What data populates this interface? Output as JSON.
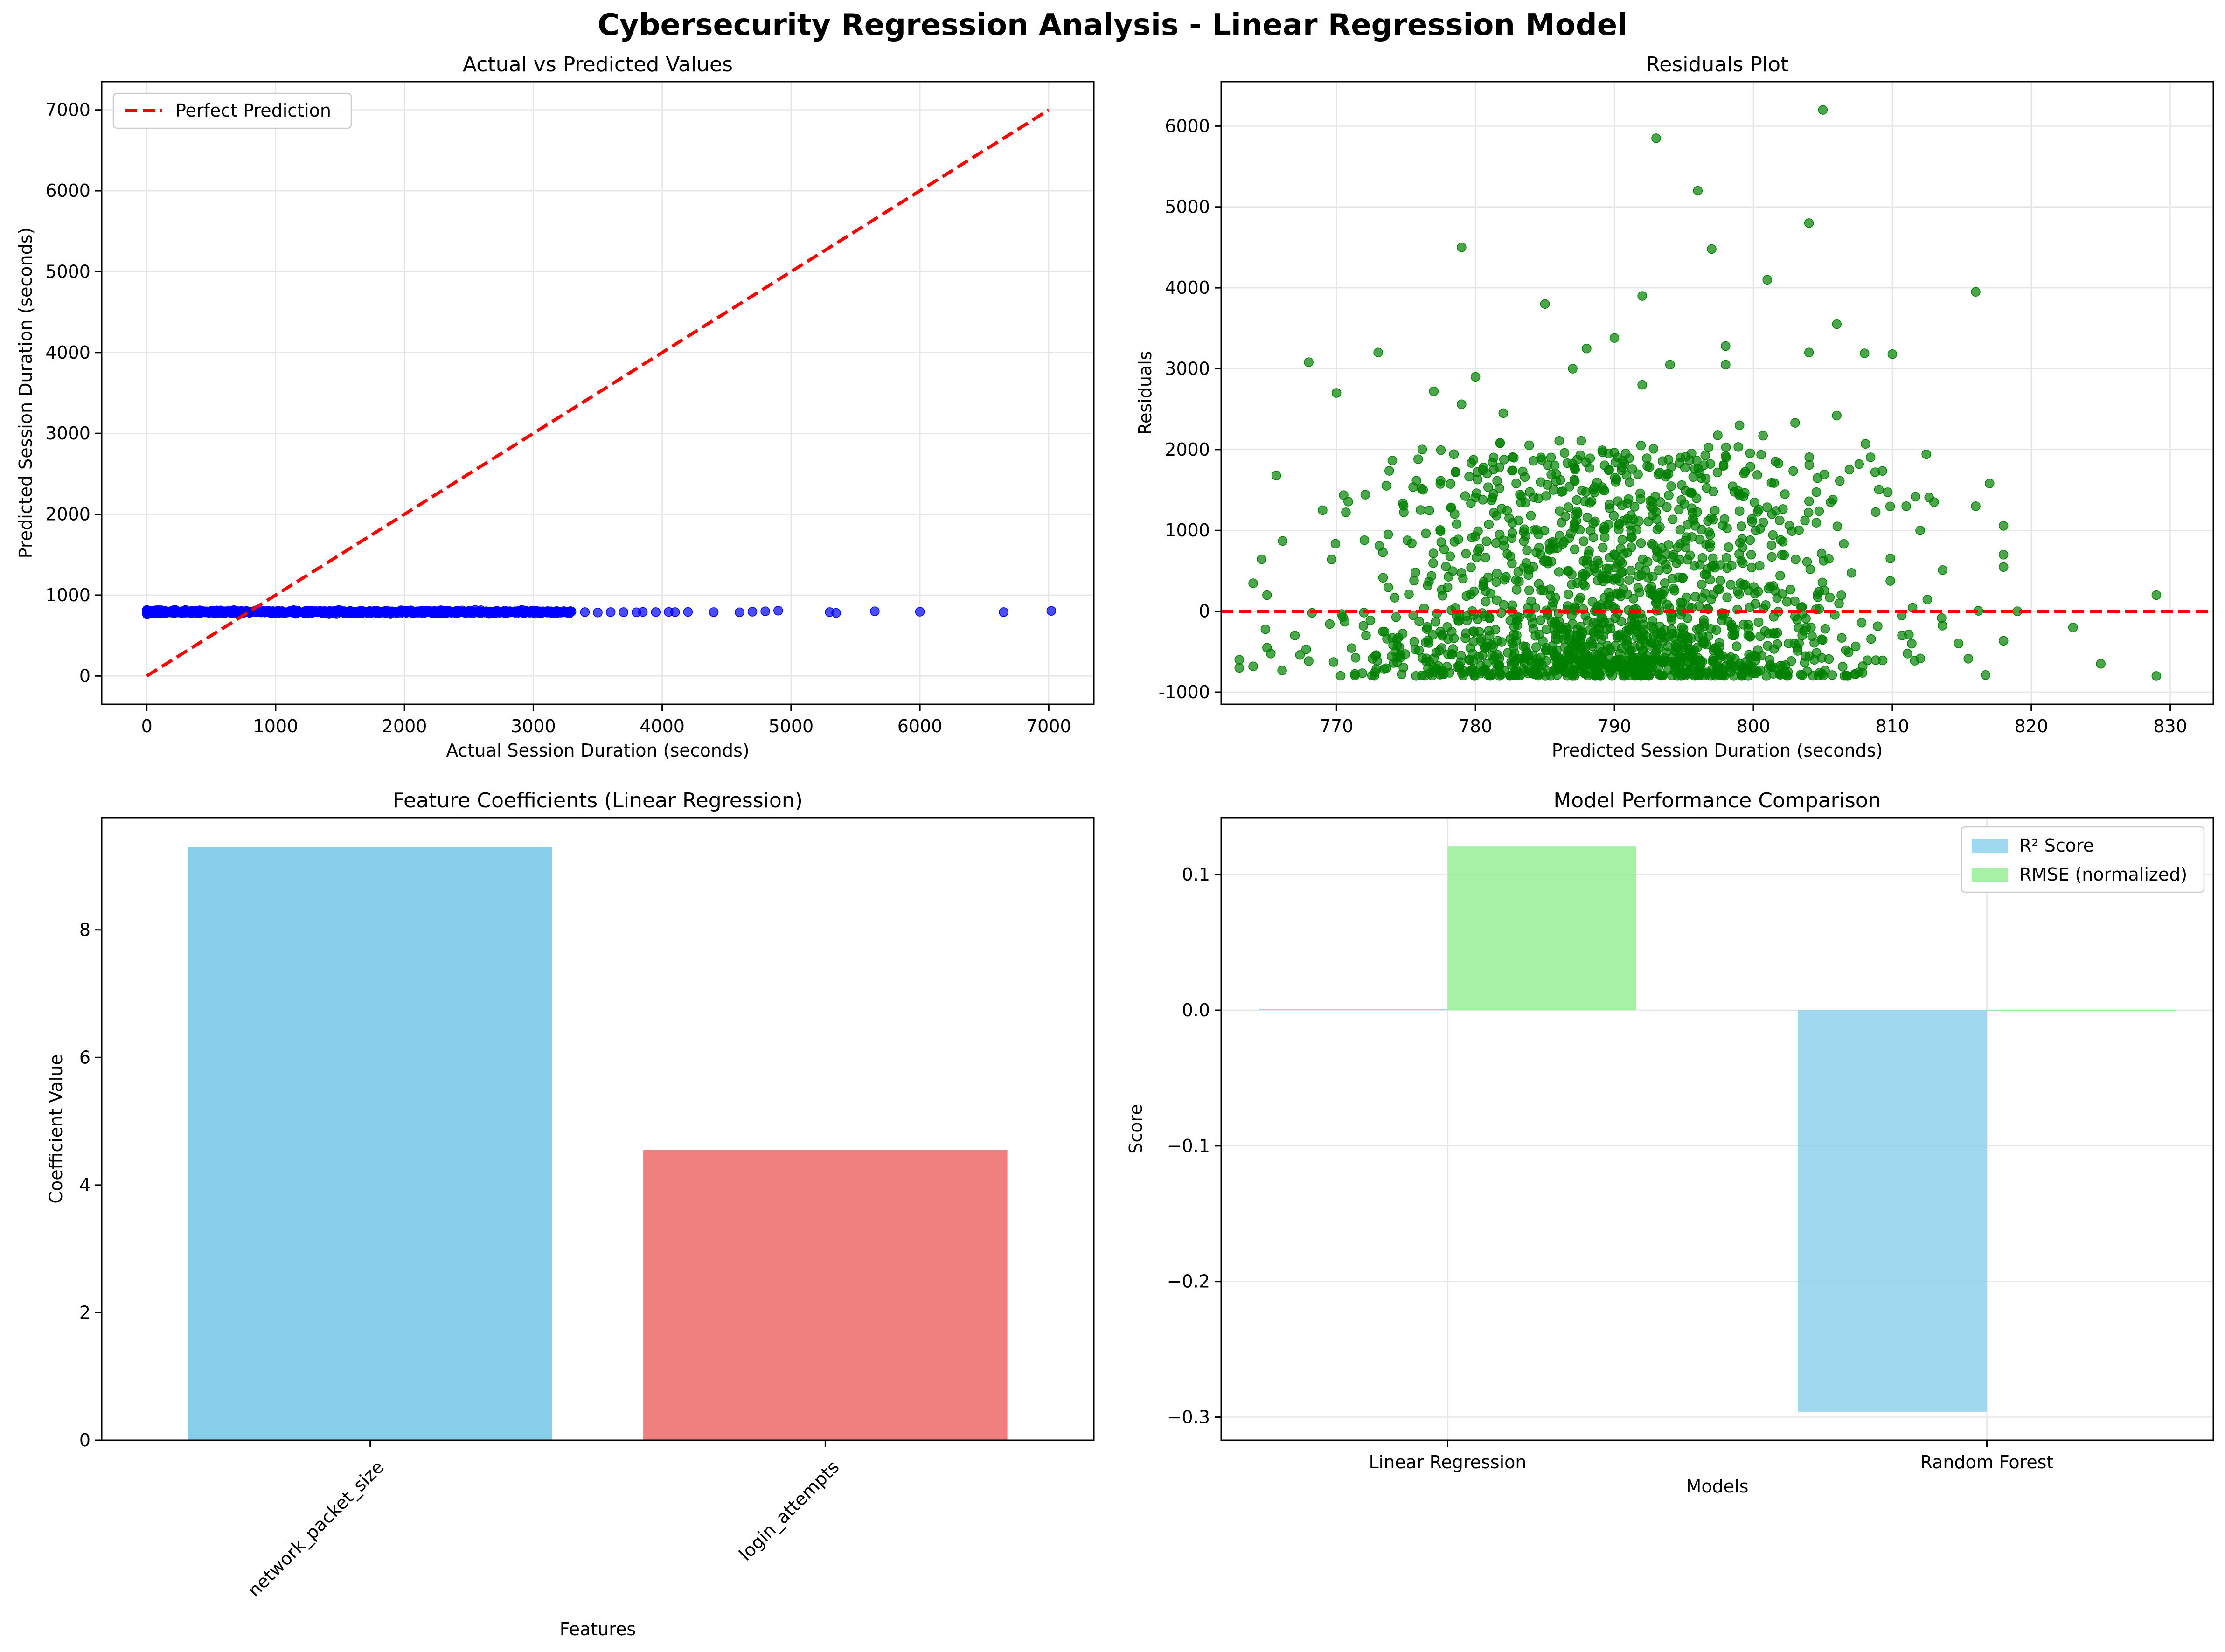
{
  "figure": {
    "title": "Cybersecurity Regression Analysis - Linear Regression Model"
  },
  "chart_data": [
    {
      "type": "scatter",
      "title": "Actual vs Predicted Values",
      "xlabel": "Actual Session Duration (seconds)",
      "ylabel": "Predicted Session Duration (seconds)",
      "xlim": [
        -350,
        7350
      ],
      "ylim": [
        -350,
        7350
      ],
      "xticks": [
        0,
        1000,
        2000,
        3000,
        4000,
        5000,
        6000,
        7000
      ],
      "yticks": [
        0,
        1000,
        2000,
        3000,
        4000,
        5000,
        6000,
        7000
      ],
      "grid": true,
      "legend": "upper-left",
      "series": [
        {
          "name": "",
          "kind": "points",
          "color": "#0000ff",
          "dense_x_range": [
            0,
            3300
          ],
          "dense_y_range": [
            775,
            815
          ],
          "points": [
            [
              3400,
              790
            ],
            [
              3500,
              785
            ],
            [
              3600,
              790
            ],
            [
              3700,
              790
            ],
            [
              3800,
              788
            ],
            [
              3850,
              792
            ],
            [
              3950,
              790
            ],
            [
              4050,
              792
            ],
            [
              4100,
              790
            ],
            [
              4200,
              792
            ],
            [
              4400,
              790
            ],
            [
              4600,
              788
            ],
            [
              4700,
              795
            ],
            [
              4800,
              800
            ],
            [
              4900,
              808
            ],
            [
              5300,
              790
            ],
            [
              5350,
              780
            ],
            [
              5650,
              800
            ],
            [
              6000,
              795
            ],
            [
              6650,
              790
            ],
            [
              7020,
              805
            ]
          ]
        },
        {
          "name": "Perfect Prediction",
          "kind": "line",
          "style": "dashed",
          "color": "#ff0000",
          "x": [
            0,
            7000
          ],
          "y": [
            0,
            7000
          ]
        }
      ]
    },
    {
      "type": "scatter",
      "title": "Residuals Plot",
      "xlabel": "Predicted Session Duration (seconds)",
      "ylabel": "Residuals",
      "xlim": [
        761.7,
        833.1
      ],
      "ylim": [
        -1150,
        6550
      ],
      "xticks": [
        770,
        780,
        790,
        800,
        810,
        820,
        830
      ],
      "yticks": [
        -1000,
        0,
        1000,
        2000,
        3000,
        4000,
        5000,
        6000
      ],
      "grid": true,
      "reference_line": {
        "y": 0,
        "style": "dashed",
        "color": "#ff0000"
      },
      "series": [
        {
          "name": "",
          "kind": "points",
          "color": "#008000",
          "cloud_center": 790,
          "cloud_spread": 9,
          "cloud_y_range": [
            -800,
            1200
          ],
          "points": [
            [
              805,
              6200
            ],
            [
              793,
              5850
            ],
            [
              796,
              5200
            ],
            [
              804,
              4800
            ],
            [
              779,
              4500
            ],
            [
              797,
              4480
            ],
            [
              801,
              4100
            ],
            [
              816,
              3950
            ],
            [
              792,
              3900
            ],
            [
              785,
              3800
            ],
            [
              806,
              3550
            ],
            [
              790,
              3380
            ],
            [
              798,
              3280
            ],
            [
              788,
              3250
            ],
            [
              804,
              3200
            ],
            [
              773,
              3200
            ],
            [
              810,
              3180
            ],
            [
              808,
              3190
            ],
            [
              768,
              3080
            ],
            [
              794,
              3050
            ],
            [
              798,
              3050
            ],
            [
              787,
              3000
            ],
            [
              780,
              2900
            ],
            [
              792,
              2800
            ],
            [
              777,
              2720
            ],
            [
              770,
              2700
            ],
            [
              806,
              2420
            ],
            [
              799,
              2300
            ],
            [
              803,
              2330
            ],
            [
              779,
              2560
            ],
            [
              782,
              2450
            ],
            [
              765,
              200
            ],
            [
              769,
              1250
            ],
            [
              763,
              -600
            ],
            [
              763,
              -700
            ],
            [
              765,
              -450
            ],
            [
              767,
              -300
            ],
            [
              818,
              700
            ],
            [
              819,
              0
            ],
            [
              823,
              -200
            ],
            [
              825,
              -650
            ],
            [
              829,
              200
            ],
            [
              829,
              -800
            ],
            [
              817,
              1580
            ],
            [
              816,
              1300
            ],
            [
              813,
              1350
            ],
            [
              811,
              1300
            ],
            [
              812,
              1000
            ]
          ]
        }
      ]
    },
    {
      "type": "bar",
      "title": "Feature Coefficients (Linear Regression)",
      "xlabel": "Features",
      "ylabel": "Coefficient Value",
      "categories": [
        "network_packet_size",
        "login_attempts"
      ],
      "values": [
        9.3,
        4.55
      ],
      "colors": [
        "#87ceeb",
        "#f08080"
      ],
      "ylim": [
        0,
        9.76
      ],
      "yticks": [
        0,
        2,
        4,
        6,
        8
      ],
      "grid": false
    },
    {
      "type": "bar",
      "title": "Model Performance Comparison",
      "xlabel": "Models",
      "ylabel": "Score",
      "categories": [
        "Linear Regression",
        "Random Forest"
      ],
      "series": [
        {
          "name": "R² Score",
          "values": [
            0.001,
            -0.296
          ],
          "color": "#87ceeb"
        },
        {
          "name": "RMSE (normalized)",
          "values": [
            0.121,
            0
          ],
          "color": "#90ee90"
        }
      ],
      "ylim": [
        -0.317,
        0.142
      ],
      "yticks": [
        -0.3,
        -0.2,
        -0.1,
        0.0,
        0.1
      ],
      "ytick_labels": [
        "−0.3",
        "−0.2",
        "−0.1",
        "0.0",
        "0.1"
      ],
      "grid": true,
      "legend": "upper-right"
    }
  ]
}
